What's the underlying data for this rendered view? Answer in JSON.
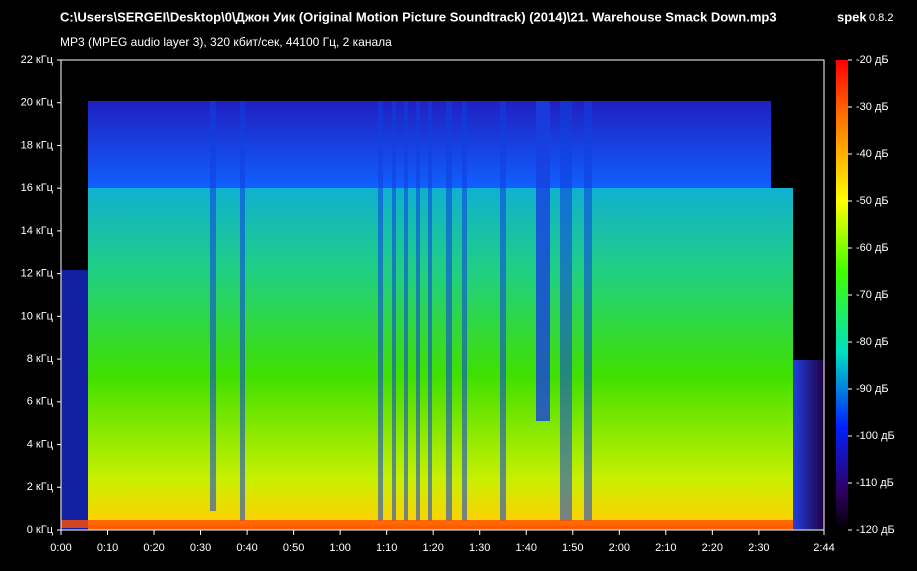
{
  "chart_data": {
    "type": "spectrogram",
    "title": "C:\\Users\\SERGEI\\Desktop\\0\\Джон Уик (Original Motion Picture Soundtrack) (2014)\\21. Warehouse Smack Down.mp3",
    "subtitle": "MP3 (MPEG audio layer 3), 320 кбит/сек, 44100 Гц, 2 канала",
    "app_name": "spek",
    "app_version": "0.8.2",
    "xlim": [
      0,
      164
    ],
    "xticks": [
      {
        "value": 0,
        "label": "0:00"
      },
      {
        "value": 10,
        "label": "0:10"
      },
      {
        "value": 20,
        "label": "0:20"
      },
      {
        "value": 30,
        "label": "0:30"
      },
      {
        "value": 40,
        "label": "0:40"
      },
      {
        "value": 50,
        "label": "0:50"
      },
      {
        "value": 60,
        "label": "1:00"
      },
      {
        "value": 70,
        "label": "1:10"
      },
      {
        "value": 80,
        "label": "1:20"
      },
      {
        "value": 90,
        "label": "1:30"
      },
      {
        "value": 100,
        "label": "1:40"
      },
      {
        "value": 110,
        "label": "1:50"
      },
      {
        "value": 120,
        "label": "2:00"
      },
      {
        "value": 130,
        "label": "2:10"
      },
      {
        "value": 140,
        "label": "2:20"
      },
      {
        "value": 150,
        "label": "2:30"
      },
      {
        "value": 164,
        "label": "2:44"
      }
    ],
    "ylim": [
      0,
      22
    ],
    "yticks": [
      {
        "value": 0,
        "label": "0 кГц"
      },
      {
        "value": 2,
        "label": "2 кГц"
      },
      {
        "value": 4,
        "label": "4 кГц"
      },
      {
        "value": 6,
        "label": "6 кГц"
      },
      {
        "value": 8,
        "label": "8 кГц"
      },
      {
        "value": 10,
        "label": "10 кГц"
      },
      {
        "value": 12,
        "label": "12 кГц"
      },
      {
        "value": 14,
        "label": "14 кГц"
      },
      {
        "value": 16,
        "label": "16 кГц"
      },
      {
        "value": 18,
        "label": "18 кГц"
      },
      {
        "value": 20,
        "label": "20 кГц"
      },
      {
        "value": 22,
        "label": "22 кГц"
      }
    ],
    "zlim": [
      -120,
      -20
    ],
    "zticks": [
      {
        "value": -20,
        "label": "-20 дБ"
      },
      {
        "value": -30,
        "label": "-30 дБ"
      },
      {
        "value": -40,
        "label": "-40 дБ"
      },
      {
        "value": -50,
        "label": "-50 дБ"
      },
      {
        "value": -60,
        "label": "-60 дБ"
      },
      {
        "value": -70,
        "label": "-70 дБ"
      },
      {
        "value": -80,
        "label": "-80 дБ"
      },
      {
        "value": -90,
        "label": "-90 дБ"
      },
      {
        "value": -100,
        "label": "-100 дБ"
      },
      {
        "value": -110,
        "label": "-110 дБ"
      },
      {
        "value": -120,
        "label": "-120 дБ"
      }
    ]
  }
}
